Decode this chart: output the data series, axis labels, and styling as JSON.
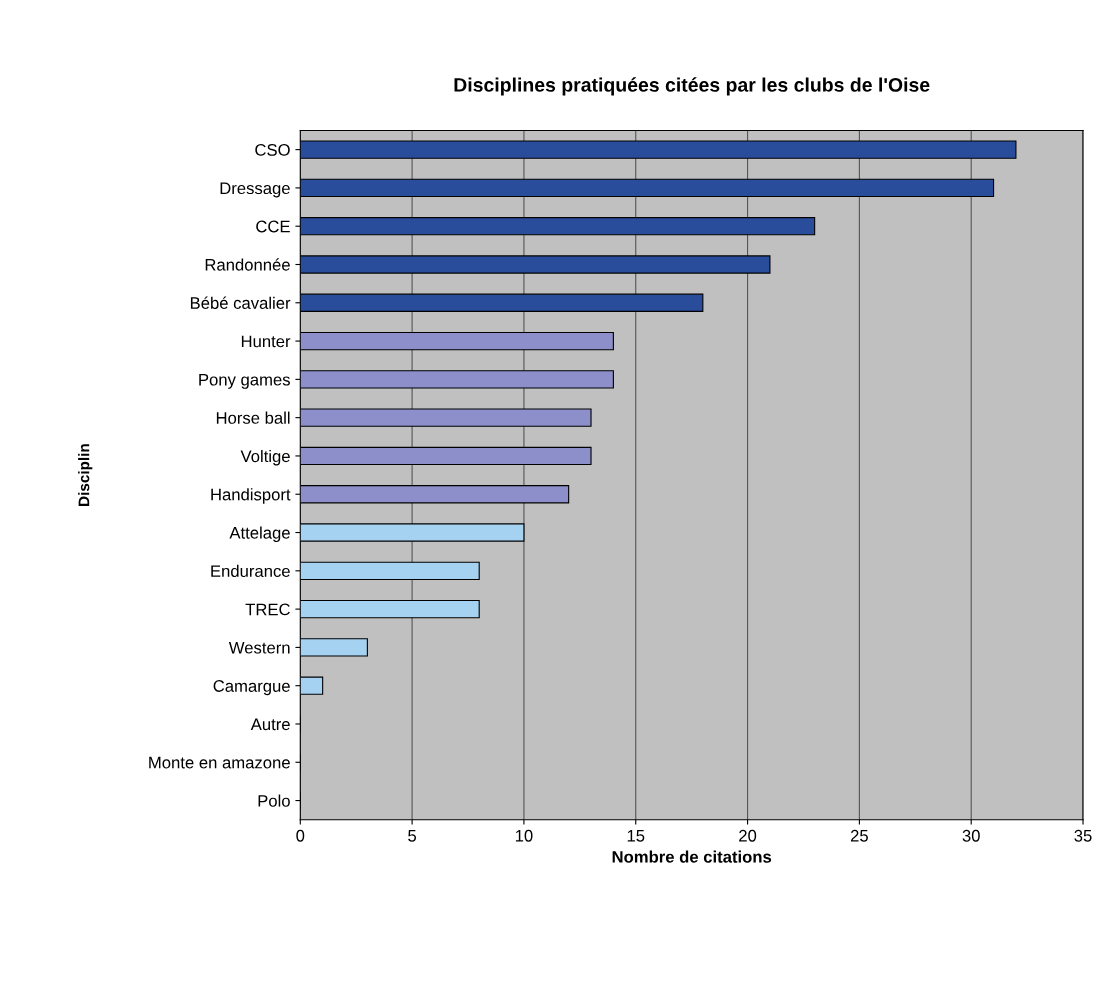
{
  "chart_data": {
    "type": "bar",
    "orientation": "horizontal",
    "title": "Disciplines pratiquées citées par les clubs de l'Oise",
    "xlabel": "Nombre de citations",
    "ylabel": "Disciplin",
    "categories": [
      "CSO",
      "Dressage",
      "CCE",
      "Randonnée",
      "Bébé cavalier",
      "Hunter",
      "Pony games",
      "Horse ball",
      "Voltige",
      "Handisport",
      "Attelage",
      "Endurance",
      "TREC",
      "Western",
      "Camargue",
      "Autre",
      "Monte en amazone",
      "Polo"
    ],
    "values": [
      32,
      31,
      23,
      21,
      18,
      14,
      14,
      13,
      13,
      12,
      10,
      8,
      8,
      3,
      1,
      0,
      0,
      0
    ],
    "colors": [
      "#2a4d9b",
      "#2a4d9b",
      "#2a4d9b",
      "#2a4d9b",
      "#2a4d9b",
      "#8c8fca",
      "#8c8fca",
      "#8c8fca",
      "#8c8fca",
      "#8c8fca",
      "#a6d2f2",
      "#a6d2f2",
      "#a6d2f2",
      "#a6d2f2",
      "#a6d2f2",
      "#a6d2f2",
      "#a6d2f2",
      "#a6d2f2"
    ],
    "xlim": [
      0,
      35
    ],
    "xticks": [
      0,
      5,
      10,
      15,
      20,
      25,
      30,
      35
    ],
    "grid": "x",
    "legend": false
  }
}
